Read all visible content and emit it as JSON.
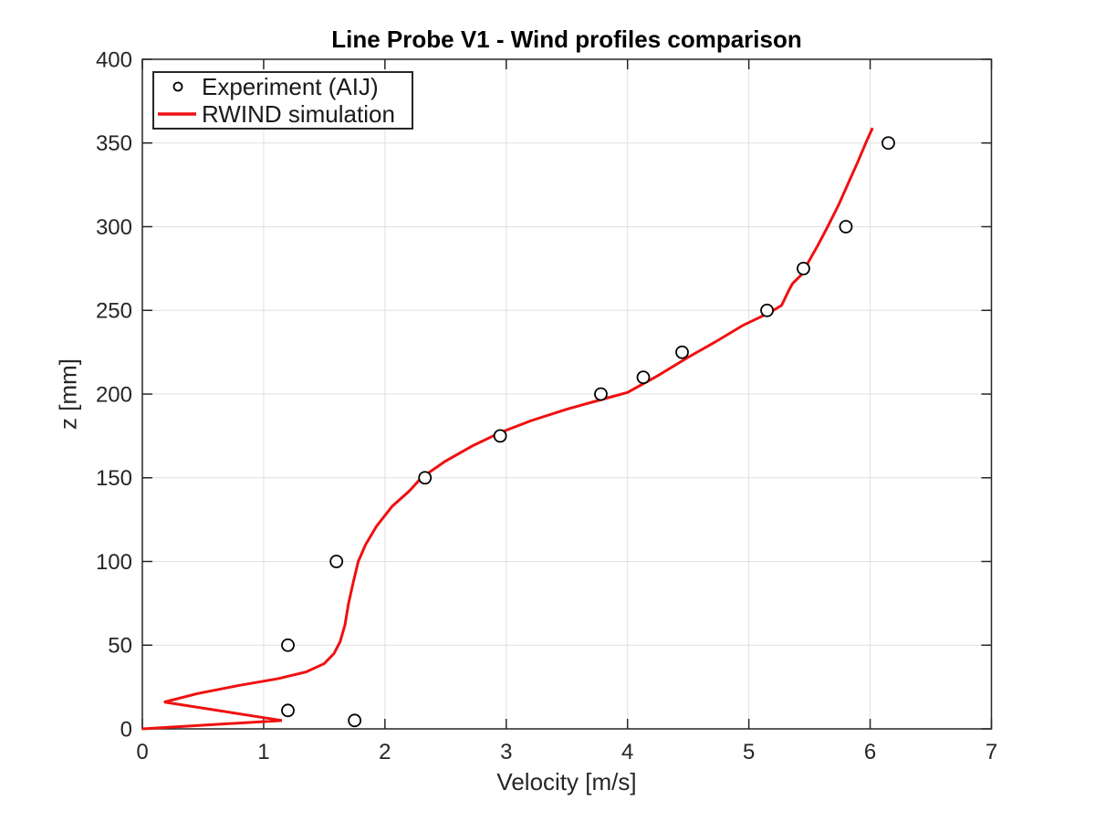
{
  "figure": {
    "background": "#ffffff"
  },
  "chart_data": {
    "type": "line",
    "title": "Line Probe V1 - Wind profiles comparison",
    "xlabel": "Velocity [m/s]",
    "ylabel": "z [mm]",
    "xlim": [
      0,
      7
    ],
    "ylim": [
      0,
      400
    ],
    "xticks": [
      0,
      1,
      2,
      3,
      4,
      5,
      6,
      7
    ],
    "yticks": [
      0,
      50,
      100,
      150,
      200,
      250,
      300,
      350,
      400
    ],
    "grid": true,
    "legend_position": "inside-top-left",
    "colors": {
      "grid": "#e0e0e0",
      "axis": "#262626",
      "text": "#262626",
      "marker": "#000000",
      "line": "#f01010"
    },
    "series": [
      {
        "name": "Experiment (AIJ)",
        "type": "scatter",
        "marker": "open-circle",
        "color": "#000000",
        "points": [
          [
            1.75,
            5
          ],
          [
            1.2,
            11
          ],
          [
            1.2,
            50
          ],
          [
            1.6,
            100
          ],
          [
            2.33,
            150
          ],
          [
            2.95,
            175
          ],
          [
            3.78,
            200
          ],
          [
            4.13,
            210
          ],
          [
            4.45,
            225
          ],
          [
            5.15,
            250
          ],
          [
            5.45,
            275
          ],
          [
            5.8,
            300
          ],
          [
            6.15,
            350
          ]
        ]
      },
      {
        "name": "RWIND simulation",
        "type": "line",
        "color": "#f01010",
        "width": 3,
        "points": [
          [
            0,
            0
          ],
          [
            1.15,
            5
          ],
          [
            0.18,
            16
          ],
          [
            0.45,
            21
          ],
          [
            0.8,
            26
          ],
          [
            1.12,
            30
          ],
          [
            1.35,
            34
          ],
          [
            1.5,
            39
          ],
          [
            1.58,
            45
          ],
          [
            1.63,
            52
          ],
          [
            1.67,
            62
          ],
          [
            1.7,
            75
          ],
          [
            1.74,
            88
          ],
          [
            1.78,
            100
          ],
          [
            1.84,
            110
          ],
          [
            1.93,
            121
          ],
          [
            2.06,
            133
          ],
          [
            2.2,
            142
          ],
          [
            2.3,
            150
          ],
          [
            2.5,
            160
          ],
          [
            2.72,
            169
          ],
          [
            2.95,
            177
          ],
          [
            3.2,
            184
          ],
          [
            3.5,
            191
          ],
          [
            3.8,
            197
          ],
          [
            4.0,
            201
          ],
          [
            4.25,
            211
          ],
          [
            4.5,
            222
          ],
          [
            4.72,
            231
          ],
          [
            4.95,
            241
          ],
          [
            5.18,
            249
          ],
          [
            5.27,
            253
          ],
          [
            5.33,
            262
          ],
          [
            5.36,
            266
          ],
          [
            5.43,
            271
          ],
          [
            5.5,
            280
          ],
          [
            5.57,
            289
          ],
          [
            5.65,
            300
          ],
          [
            5.74,
            313
          ],
          [
            5.82,
            326
          ],
          [
            5.9,
            339
          ],
          [
            5.97,
            351
          ],
          [
            6.02,
            359
          ]
        ]
      }
    ]
  }
}
